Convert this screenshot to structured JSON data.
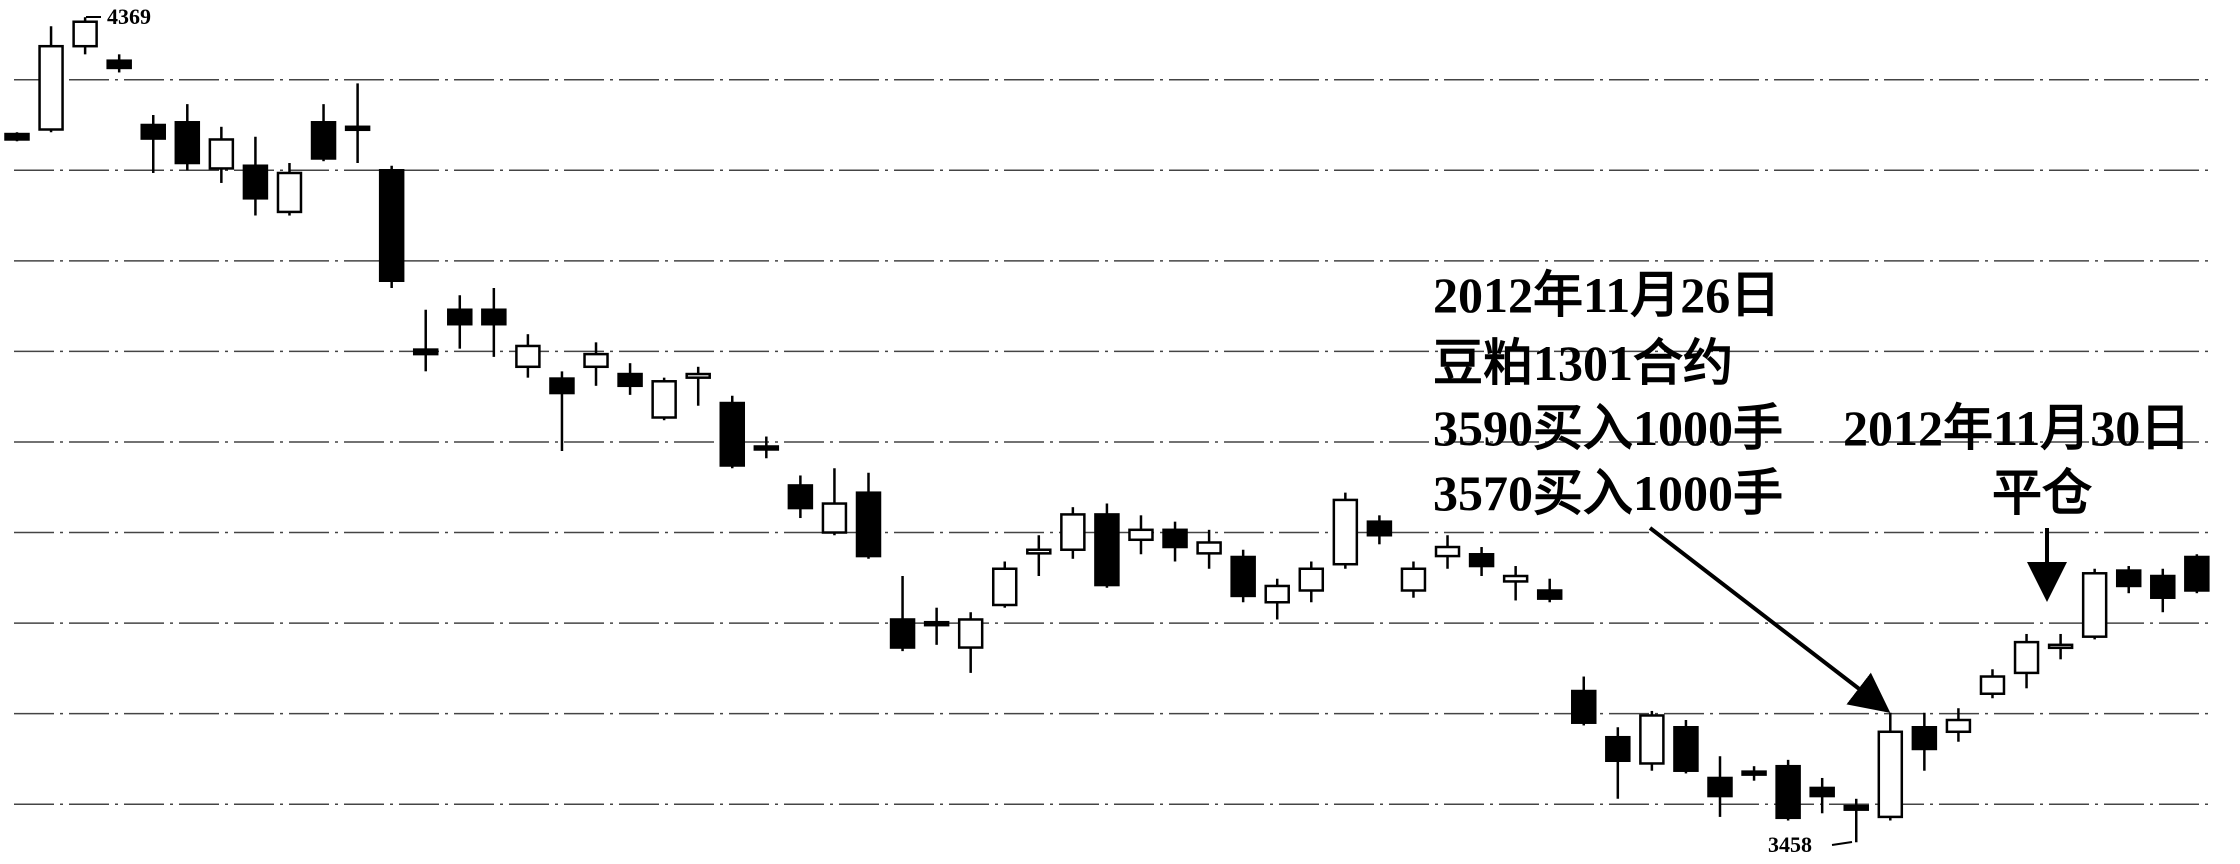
{
  "chart_data": {
    "type": "candlestick",
    "open": [
      4240,
      4245,
      4337,
      4321,
      4250,
      4253,
      4202,
      4205,
      4154,
      4253,
      4248,
      4200,
      4002,
      4046,
      4046,
      3983,
      3970,
      3983,
      3975,
      3927,
      3971,
      3943,
      3895,
      3852,
      3800,
      3844,
      3704,
      3701,
      3673,
      3720,
      3777,
      3781,
      3820,
      3792,
      3803,
      3777,
      3773,
      3723,
      3736,
      3765,
      3812,
      3736,
      3774,
      3776,
      3746,
      3736,
      3625,
      3574,
      3545,
      3585,
      3529,
      3536,
      3542,
      3518,
      3498,
      3486,
      3585,
      3580,
      3622,
      3645,
      3673,
      3685,
      3758,
      3752,
      3773
    ],
    "high": [
      4242,
      4359,
      4369,
      4328,
      4261,
      4273,
      4248,
      4237,
      4208,
      4273,
      4296,
      4205,
      4046,
      4062,
      4070,
      4019,
      3978,
      4010,
      3987,
      3971,
      3983,
      3951,
      3906,
      3863,
      3871,
      3866,
      3752,
      3717,
      3712,
      3768,
      3797,
      3828,
      3832,
      3819,
      3812,
      3803,
      3781,
      3749,
      3768,
      3844,
      3819,
      3768,
      3797,
      3784,
      3763,
      3749,
      3641,
      3585,
      3603,
      3593,
      3553,
      3542,
      3549,
      3529,
      3506,
      3601,
      3601,
      3606,
      3649,
      3688,
      3688,
      3760,
      3763,
      3760,
      3776
    ],
    "low": [
      4232,
      4242,
      4328,
      4308,
      4197,
      4200,
      4186,
      4150,
      4150,
      4210,
      4208,
      4070,
      3978,
      4003,
      3994,
      3971,
      3890,
      3962,
      3952,
      3924,
      3940,
      3871,
      3882,
      3816,
      3797,
      3771,
      3669,
      3676,
      3645,
      3717,
      3752,
      3771,
      3739,
      3776,
      3768,
      3760,
      3723,
      3704,
      3723,
      3760,
      3787,
      3728,
      3760,
      3752,
      3725,
      3723,
      3587,
      3506,
      3537,
      3534,
      3486,
      3526,
      3482,
      3490,
      3458,
      3482,
      3537,
      3569,
      3617,
      3628,
      3660,
      3682,
      3733,
      3712,
      3733
    ],
    "close": [
      4234,
      4337,
      4364,
      4313,
      4235,
      4208,
      4234,
      4169,
      4197,
      4213,
      4245,
      4078,
      3997,
      4030,
      4030,
      4006,
      3954,
      3997,
      3962,
      3967,
      3975,
      3874,
      3892,
      3827,
      3832,
      3774,
      3673,
      3698,
      3704,
      3760,
      3781,
      3820,
      3742,
      3803,
      3784,
      3789,
      3730,
      3741,
      3760,
      3836,
      3797,
      3760,
      3784,
      3763,
      3752,
      3727,
      3590,
      3548,
      3598,
      3537,
      3509,
      3533,
      3485,
      3509,
      3494,
      3580,
      3561,
      3593,
      3641,
      3679,
      3676,
      3755,
      3741,
      3728,
      3736
    ],
    "up_color": "#ffffff",
    "down_color": "#000000",
    "ylim": [
      3434,
      4388
    ],
    "yticks": [
      3500,
      3600,
      3700,
      3800,
      3900,
      4000,
      4100,
      4200,
      4300
    ],
    "grid": true,
    "show_tick_labels": false,
    "annotations": [
      "2012年11月26日",
      "豆粕1301合约",
      "3590买入1000手",
      "3570买入1000手",
      "2012年11月30日",
      "平仓"
    ]
  }
}
